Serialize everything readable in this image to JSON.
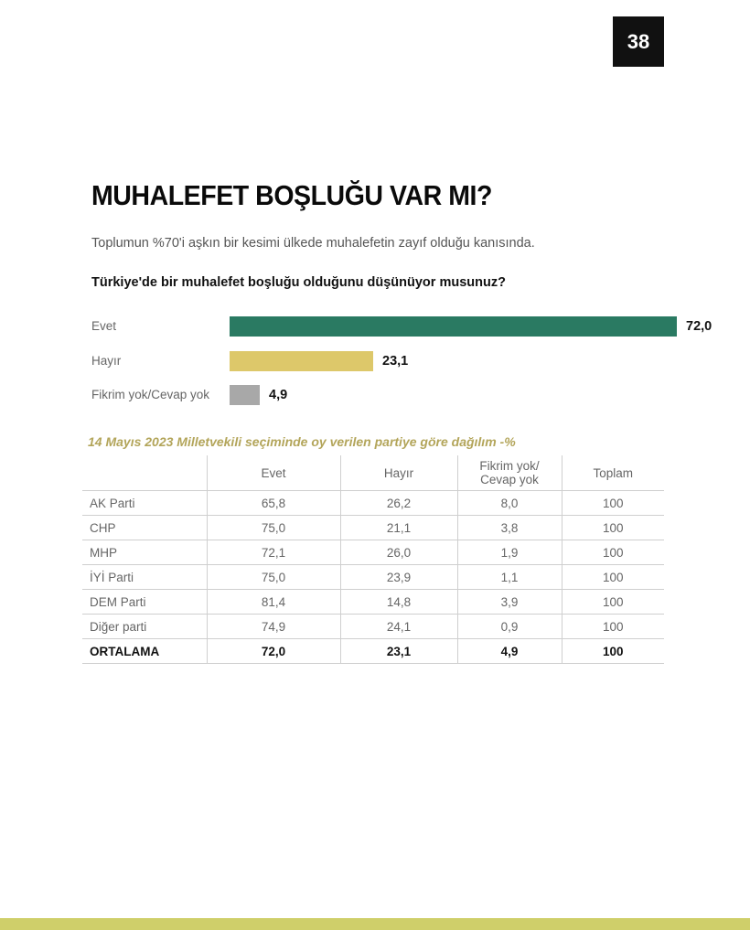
{
  "page_number": "38",
  "title": "MUHALEFET BOŞLUĞU VAR MI?",
  "subtitle": "Toplumun %70'i aşkın bir kesimi ülkede muhalefetin zayıf olduğu kanısında.",
  "chart_data": [
    {
      "type": "bar",
      "orientation": "horizontal",
      "title": "Türkiye'de bir muhalefet boşluğu olduğunu düşünüyor musunuz?",
      "categories": [
        "Evet",
        "Hayır",
        "Fikrim yok/Cevap yok"
      ],
      "values": [
        72.0,
        23.1,
        4.9
      ],
      "value_labels": [
        "72,0",
        "23,1",
        "4,9"
      ],
      "colors": [
        "#2a7a62",
        "#ddc86a",
        "#a8a8a8"
      ],
      "xlim": [
        0,
        72.0
      ],
      "grid": false
    },
    {
      "type": "table",
      "title": "14 Mayıs 2023 Milletvekili seçiminde oy verilen partiye göre dağılım -%",
      "columns": [
        "",
        "Evet",
        "Hayır",
        "Fikrim yok/\nCevap yok",
        "Toplam"
      ],
      "rows": [
        [
          "AK Parti",
          "65,8",
          "26,2",
          "8,0",
          "100"
        ],
        [
          "CHP",
          "75,0",
          "21,1",
          "3,8",
          "100"
        ],
        [
          "MHP",
          "72,1",
          "26,0",
          "1,9",
          "100"
        ],
        [
          "İYİ Parti",
          "75,0",
          "23,9",
          "1,1",
          "100"
        ],
        [
          "DEM Parti",
          "81,4",
          "14,8",
          "3,9",
          "100"
        ],
        [
          "Diğer parti",
          "74,9",
          "24,1",
          "0,9",
          "100"
        ],
        [
          "ORTALAMA",
          "72,0",
          "23,1",
          "4,9",
          "100"
        ]
      ]
    }
  ]
}
